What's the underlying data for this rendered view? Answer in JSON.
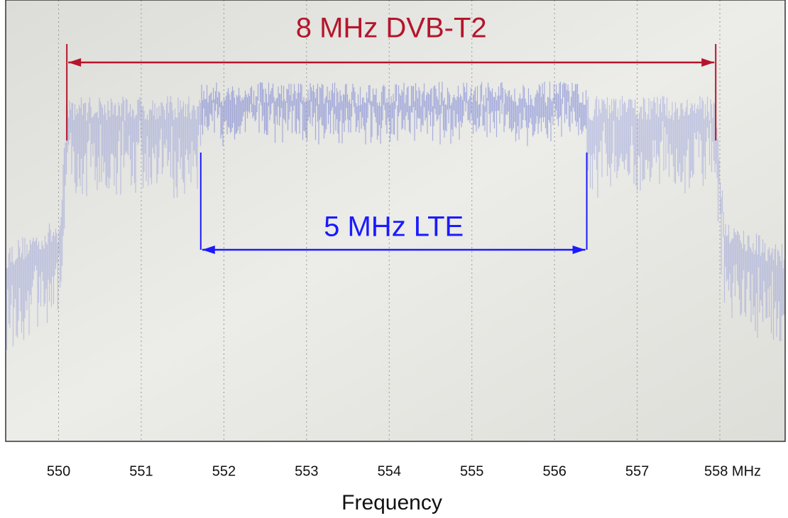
{
  "chart_data": {
    "type": "spectrum",
    "x_label": "Frequency",
    "xlim": [
      549.36,
      558.79
    ],
    "xticks": [
      550,
      551,
      552,
      553,
      554,
      555,
      556,
      557,
      {
        "value": 558,
        "label": "558 MHz"
      }
    ],
    "grid": true,
    "annotations": [
      {
        "text": "8 MHz DVB-T2",
        "x_range": [
          550.1,
          557.95
        ],
        "color": "#b5152b"
      },
      {
        "text": "5 MHz LTE",
        "x_range": [
          551.72,
          556.39
        ],
        "color": "#1a1aff"
      }
    ]
  }
}
